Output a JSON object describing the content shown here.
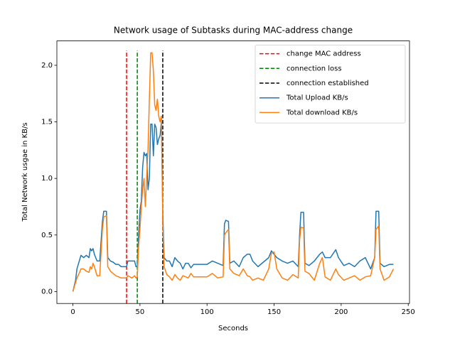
{
  "chart_data": {
    "type": "line",
    "title": "Network usage of Subtasks during MAC-address change",
    "x_label": "Seconds",
    "y_label": "Total Network usgae in KB/s",
    "xlim": [
      -11.95,
      250.95
    ],
    "ylim": [
      -0.1055,
      2.2155
    ],
    "xticks": [
      0,
      50,
      100,
      150,
      200,
      250
    ],
    "yticks": [
      {
        "value": 0,
        "label": "0.0"
      },
      0.5,
      {
        "value": 1,
        "label": "1.0"
      },
      1.5,
      {
        "value": 2,
        "label": "2.0"
      }
    ],
    "legend": "upper right",
    "vlines": [
      {
        "name": "change MAC address",
        "x": 40,
        "ymax": 2.13,
        "color": "#ff0000"
      },
      {
        "name": "connection loss",
        "x": 48,
        "ymax": 2.13,
        "color": "#008000"
      },
      {
        "name": "connection established",
        "x": 67,
        "ymax": 2.13,
        "color": "#000000"
      }
    ],
    "x": [
      0,
      2,
      3,
      5,
      6,
      8,
      10,
      12,
      13,
      14,
      15,
      16,
      18,
      20,
      22,
      23,
      25,
      26,
      28,
      30,
      32,
      34,
      36,
      38,
      40,
      41,
      44,
      46,
      47,
      48,
      49,
      50,
      51,
      52,
      53,
      54,
      55,
      56,
      57,
      58,
      59,
      60,
      61,
      62,
      63,
      64,
      65,
      66,
      67,
      68,
      70,
      72,
      74,
      76,
      78,
      80,
      82,
      84,
      86,
      88,
      90,
      100,
      104,
      108,
      112,
      113,
      114,
      116,
      117,
      120,
      124,
      127,
      130,
      132,
      134,
      138,
      142,
      146,
      148,
      150,
      152,
      156,
      160,
      164,
      168,
      169,
      170,
      172,
      173,
      176,
      180,
      184,
      186,
      188,
      192,
      196,
      198,
      202,
      206,
      210,
      214,
      218,
      222,
      225,
      226,
      228,
      229,
      232,
      236,
      239
    ],
    "series": [
      {
        "name": "Total Upload KB/s",
        "color": "#1f77b4",
        "values": [
          0,
          0.1,
          0.2,
          0.28,
          0.32,
          0.3,
          0.32,
          0.3,
          0.38,
          0.36,
          0.38,
          0.33,
          0.27,
          0.27,
          0.62,
          0.71,
          0.71,
          0.3,
          0.27,
          0.26,
          0.24,
          0.24,
          0.22,
          0.22,
          0.22,
          0.27,
          0.27,
          0.27,
          0.22,
          0.22,
          0.5,
          0.72,
          0.8,
          1.1,
          1.23,
          1.2,
          1.22,
          0.9,
          1.0,
          1.48,
          1.48,
          1.2,
          1.48,
          1.45,
          1.3,
          1.35,
          1.38,
          1.5,
          0.7,
          0.3,
          0.27,
          0.27,
          0.22,
          0.3,
          0.27,
          0.25,
          0.2,
          0.25,
          0.25,
          0.21,
          0.24,
          0.24,
          0.27,
          0.25,
          0.23,
          0.6,
          0.63,
          0.62,
          0.25,
          0.27,
          0.22,
          0.3,
          0.33,
          0.33,
          0.27,
          0.22,
          0.26,
          0.3,
          0.36,
          0.33,
          0.3,
          0.27,
          0.25,
          0.27,
          0.22,
          0.5,
          0.7,
          0.7,
          0.25,
          0.23,
          0.27,
          0.33,
          0.35,
          0.3,
          0.3,
          0.37,
          0.3,
          0.23,
          0.25,
          0.22,
          0.27,
          0.3,
          0.2,
          0.3,
          0.71,
          0.71,
          0.25,
          0.22,
          0.24,
          0.24
        ]
      },
      {
        "name": "Total download KB/s",
        "color": "#ff7f0e",
        "values": [
          0,
          0.08,
          0.12,
          0.17,
          0.2,
          0.2,
          0.18,
          0.17,
          0.22,
          0.2,
          0.25,
          0.22,
          0.14,
          0.14,
          0.55,
          0.66,
          0.67,
          0.22,
          0.18,
          0.16,
          0.14,
          0.13,
          0.12,
          0.12,
          0.12,
          0.14,
          0.12,
          0.14,
          0.12,
          0.13,
          0.4,
          0.55,
          0.75,
          0.9,
          1.0,
          0.75,
          1.02,
          1.25,
          1.7,
          2.11,
          2.11,
          1.95,
          1.65,
          1.6,
          1.7,
          1.55,
          1.5,
          1.55,
          0.6,
          0.22,
          0.15,
          0.13,
          0.1,
          0.15,
          0.12,
          0.1,
          0.14,
          0.13,
          0.12,
          0.16,
          0.13,
          0.13,
          0.16,
          0.12,
          0.13,
          0.5,
          0.52,
          0.55,
          0.2,
          0.16,
          0.14,
          0.2,
          0.14,
          0.13,
          0.1,
          0.12,
          0.1,
          0.2,
          0.34,
          0.35,
          0.2,
          0.12,
          0.1,
          0.15,
          0.12,
          0.45,
          0.57,
          0.56,
          0.18,
          0.16,
          0.1,
          0.25,
          0.3,
          0.13,
          0.1,
          0.2,
          0.15,
          0.1,
          0.12,
          0.14,
          0.1,
          0.13,
          0.14,
          0.3,
          0.55,
          0.58,
          0.2,
          0.1,
          0.13,
          0.2
        ]
      }
    ]
  }
}
